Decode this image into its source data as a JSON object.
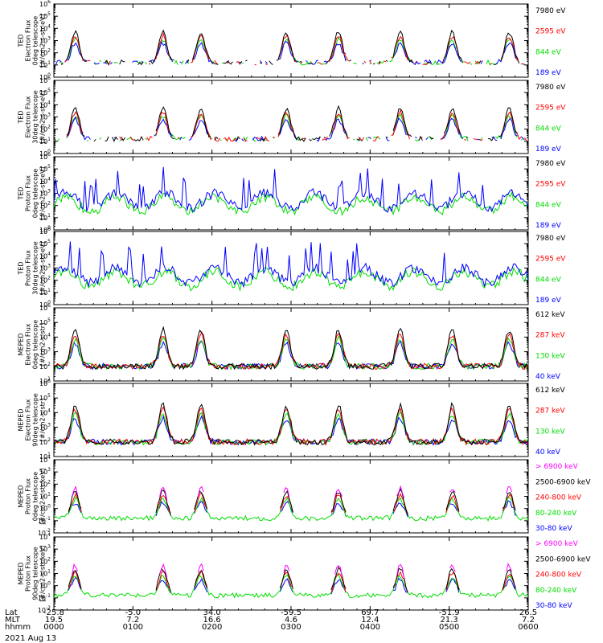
{
  "chart_data": [
    {
      "type": "line",
      "instrument": "TED",
      "ylabel": [
        "TED",
        "Electron Flux",
        "0deg telescope",
        "[#/cm2-s-str-eV]"
      ],
      "ytick_exponents": [
        0,
        1,
        2,
        3,
        4,
        5,
        6
      ],
      "ylim": [
        1,
        1000000
      ],
      "log_y": true,
      "series": [
        {
          "name": "7980 eV",
          "color": "#000000"
        },
        {
          "name": "2595 eV",
          "color": "#ff0000"
        },
        {
          "name": "844 eV",
          "color": "#00dd00"
        },
        {
          "name": "189 eV",
          "color": "#0000ff"
        }
      ]
    },
    {
      "type": "line",
      "instrument": "TED",
      "ylabel": [
        "TED",
        "Electron Flux",
        "30deg telescope",
        "[#/cm2-s-str-eV]"
      ],
      "ytick_exponents": [
        0,
        1,
        2,
        3,
        4,
        5,
        6
      ],
      "ylim": [
        1,
        1000000
      ],
      "log_y": true,
      "series": [
        {
          "name": "7980 eV",
          "color": "#000000"
        },
        {
          "name": "2595 eV",
          "color": "#ff0000"
        },
        {
          "name": "844 eV",
          "color": "#00dd00"
        },
        {
          "name": "189 eV",
          "color": "#0000ff"
        }
      ]
    },
    {
      "type": "line",
      "instrument": "TED",
      "ylabel": [
        "TED",
        "Proton Flux",
        "0deg telescope",
        "[#/cm2-s-str-eV]"
      ],
      "ytick_exponents": [
        0,
        1,
        2,
        3,
        4,
        5,
        6
      ],
      "ylim": [
        1,
        1000000
      ],
      "log_y": true,
      "series": [
        {
          "name": "7980 eV",
          "color": "#000000"
        },
        {
          "name": "2595 eV",
          "color": "#ff0000"
        },
        {
          "name": "844 eV",
          "color": "#00dd00"
        },
        {
          "name": "189 eV",
          "color": "#0000ff"
        }
      ]
    },
    {
      "type": "line",
      "instrument": "TED",
      "ylabel": [
        "TED",
        "Proton Flux",
        "30deg telescope",
        "[#/cm2-s-str-eV]"
      ],
      "ytick_exponents": [
        0,
        1,
        2,
        3,
        4,
        5,
        6
      ],
      "ylim": [
        1,
        1000000
      ],
      "log_y": true,
      "series": [
        {
          "name": "7980 eV",
          "color": "#000000"
        },
        {
          "name": "2595 eV",
          "color": "#ff0000"
        },
        {
          "name": "844 eV",
          "color": "#00dd00"
        },
        {
          "name": "189 eV",
          "color": "#0000ff"
        }
      ]
    },
    {
      "type": "line",
      "instrument": "MEPED",
      "ylabel": [
        "MEPED",
        "Electron Flux",
        "0deg telescope",
        "[#/cm2-s-str]"
      ],
      "ytick_exponents": [
        1,
        2,
        3,
        4,
        5,
        6
      ],
      "ylim": [
        10,
        1000000
      ],
      "log_y": true,
      "series": [
        {
          "name": "612 keV",
          "color": "#000000"
        },
        {
          "name": "287 keV",
          "color": "#ff0000"
        },
        {
          "name": "130 keV",
          "color": "#00dd00"
        },
        {
          "name": "40 keV",
          "color": "#0000ff"
        }
      ]
    },
    {
      "type": "line",
      "instrument": "MEPED",
      "ylabel": [
        "MEPED",
        "Electron Flux",
        "90deg telescope",
        "[#/cm2-s-str]"
      ],
      "ytick_exponents": [
        1,
        2,
        3,
        4,
        5,
        6
      ],
      "ylim": [
        10,
        1000000
      ],
      "log_y": true,
      "series": [
        {
          "name": "612 keV",
          "color": "#000000"
        },
        {
          "name": "287 keV",
          "color": "#ff0000"
        },
        {
          "name": "130 keV",
          "color": "#00dd00"
        },
        {
          "name": "40 keV",
          "color": "#0000ff"
        }
      ]
    },
    {
      "type": "line",
      "instrument": "MEPED",
      "ylabel": [
        "MEPED",
        "Proton Flux",
        "0deg telescope",
        "[#/cm2-s-str-keV]"
      ],
      "ytick_exponents": [
        -2,
        -1,
        0,
        1,
        2,
        3,
        4
      ],
      "ylim": [
        0.01,
        10000
      ],
      "log_y": true,
      "series": [
        {
          "name": "> 6900 keV",
          "color": "#ff00ff"
        },
        {
          "name": "2500-6900 keV",
          "color": "#000000"
        },
        {
          "name": "240-800 keV",
          "color": "#ff0000"
        },
        {
          "name": "80-240 keV",
          "color": "#00dd00"
        },
        {
          "name": "30-80 keV",
          "color": "#0000ff"
        }
      ]
    },
    {
      "type": "line",
      "instrument": "MEPED",
      "ylabel": [
        "MEPED",
        "Proton Flux",
        "90deg telescope",
        "[#/cm2-s-str-keV]"
      ],
      "ytick_exponents": [
        -2,
        -1,
        0,
        1,
        2,
        3,
        4
      ],
      "ylim": [
        0.01,
        10000
      ],
      "log_y": true,
      "series": [
        {
          "name": "> 6900 keV",
          "color": "#ff00ff"
        },
        {
          "name": "2500-6900 keV",
          "color": "#000000"
        },
        {
          "name": "240-800 keV",
          "color": "#ff0000"
        },
        {
          "name": "80-240 keV",
          "color": "#00dd00"
        },
        {
          "name": "30-80 keV",
          "color": "#0000ff"
        }
      ]
    }
  ],
  "x_axis": {
    "row_labels": [
      "Lat",
      "MLT",
      "hhmm"
    ],
    "ticks": [
      {
        "lat": "-25.8",
        "mlt": "19.5",
        "hhmm": "0000"
      },
      {
        "lat": "-5.0",
        "mlt": "7.2",
        "hhmm": "0100"
      },
      {
        "lat": "34.0",
        "mlt": "16.6",
        "hhmm": "0200"
      },
      {
        "lat": "-59.5",
        "mlt": "4.6",
        "hhmm": "0300"
      },
      {
        "lat": "69.7",
        "mlt": "12.4",
        "hhmm": "0400"
      },
      {
        "lat": "-51.9",
        "mlt": "21.3",
        "hhmm": "0500"
      },
      {
        "lat": "26.5",
        "mlt": "7.2",
        "hhmm": "0600"
      }
    ],
    "date": "2021 Aug 13"
  }
}
